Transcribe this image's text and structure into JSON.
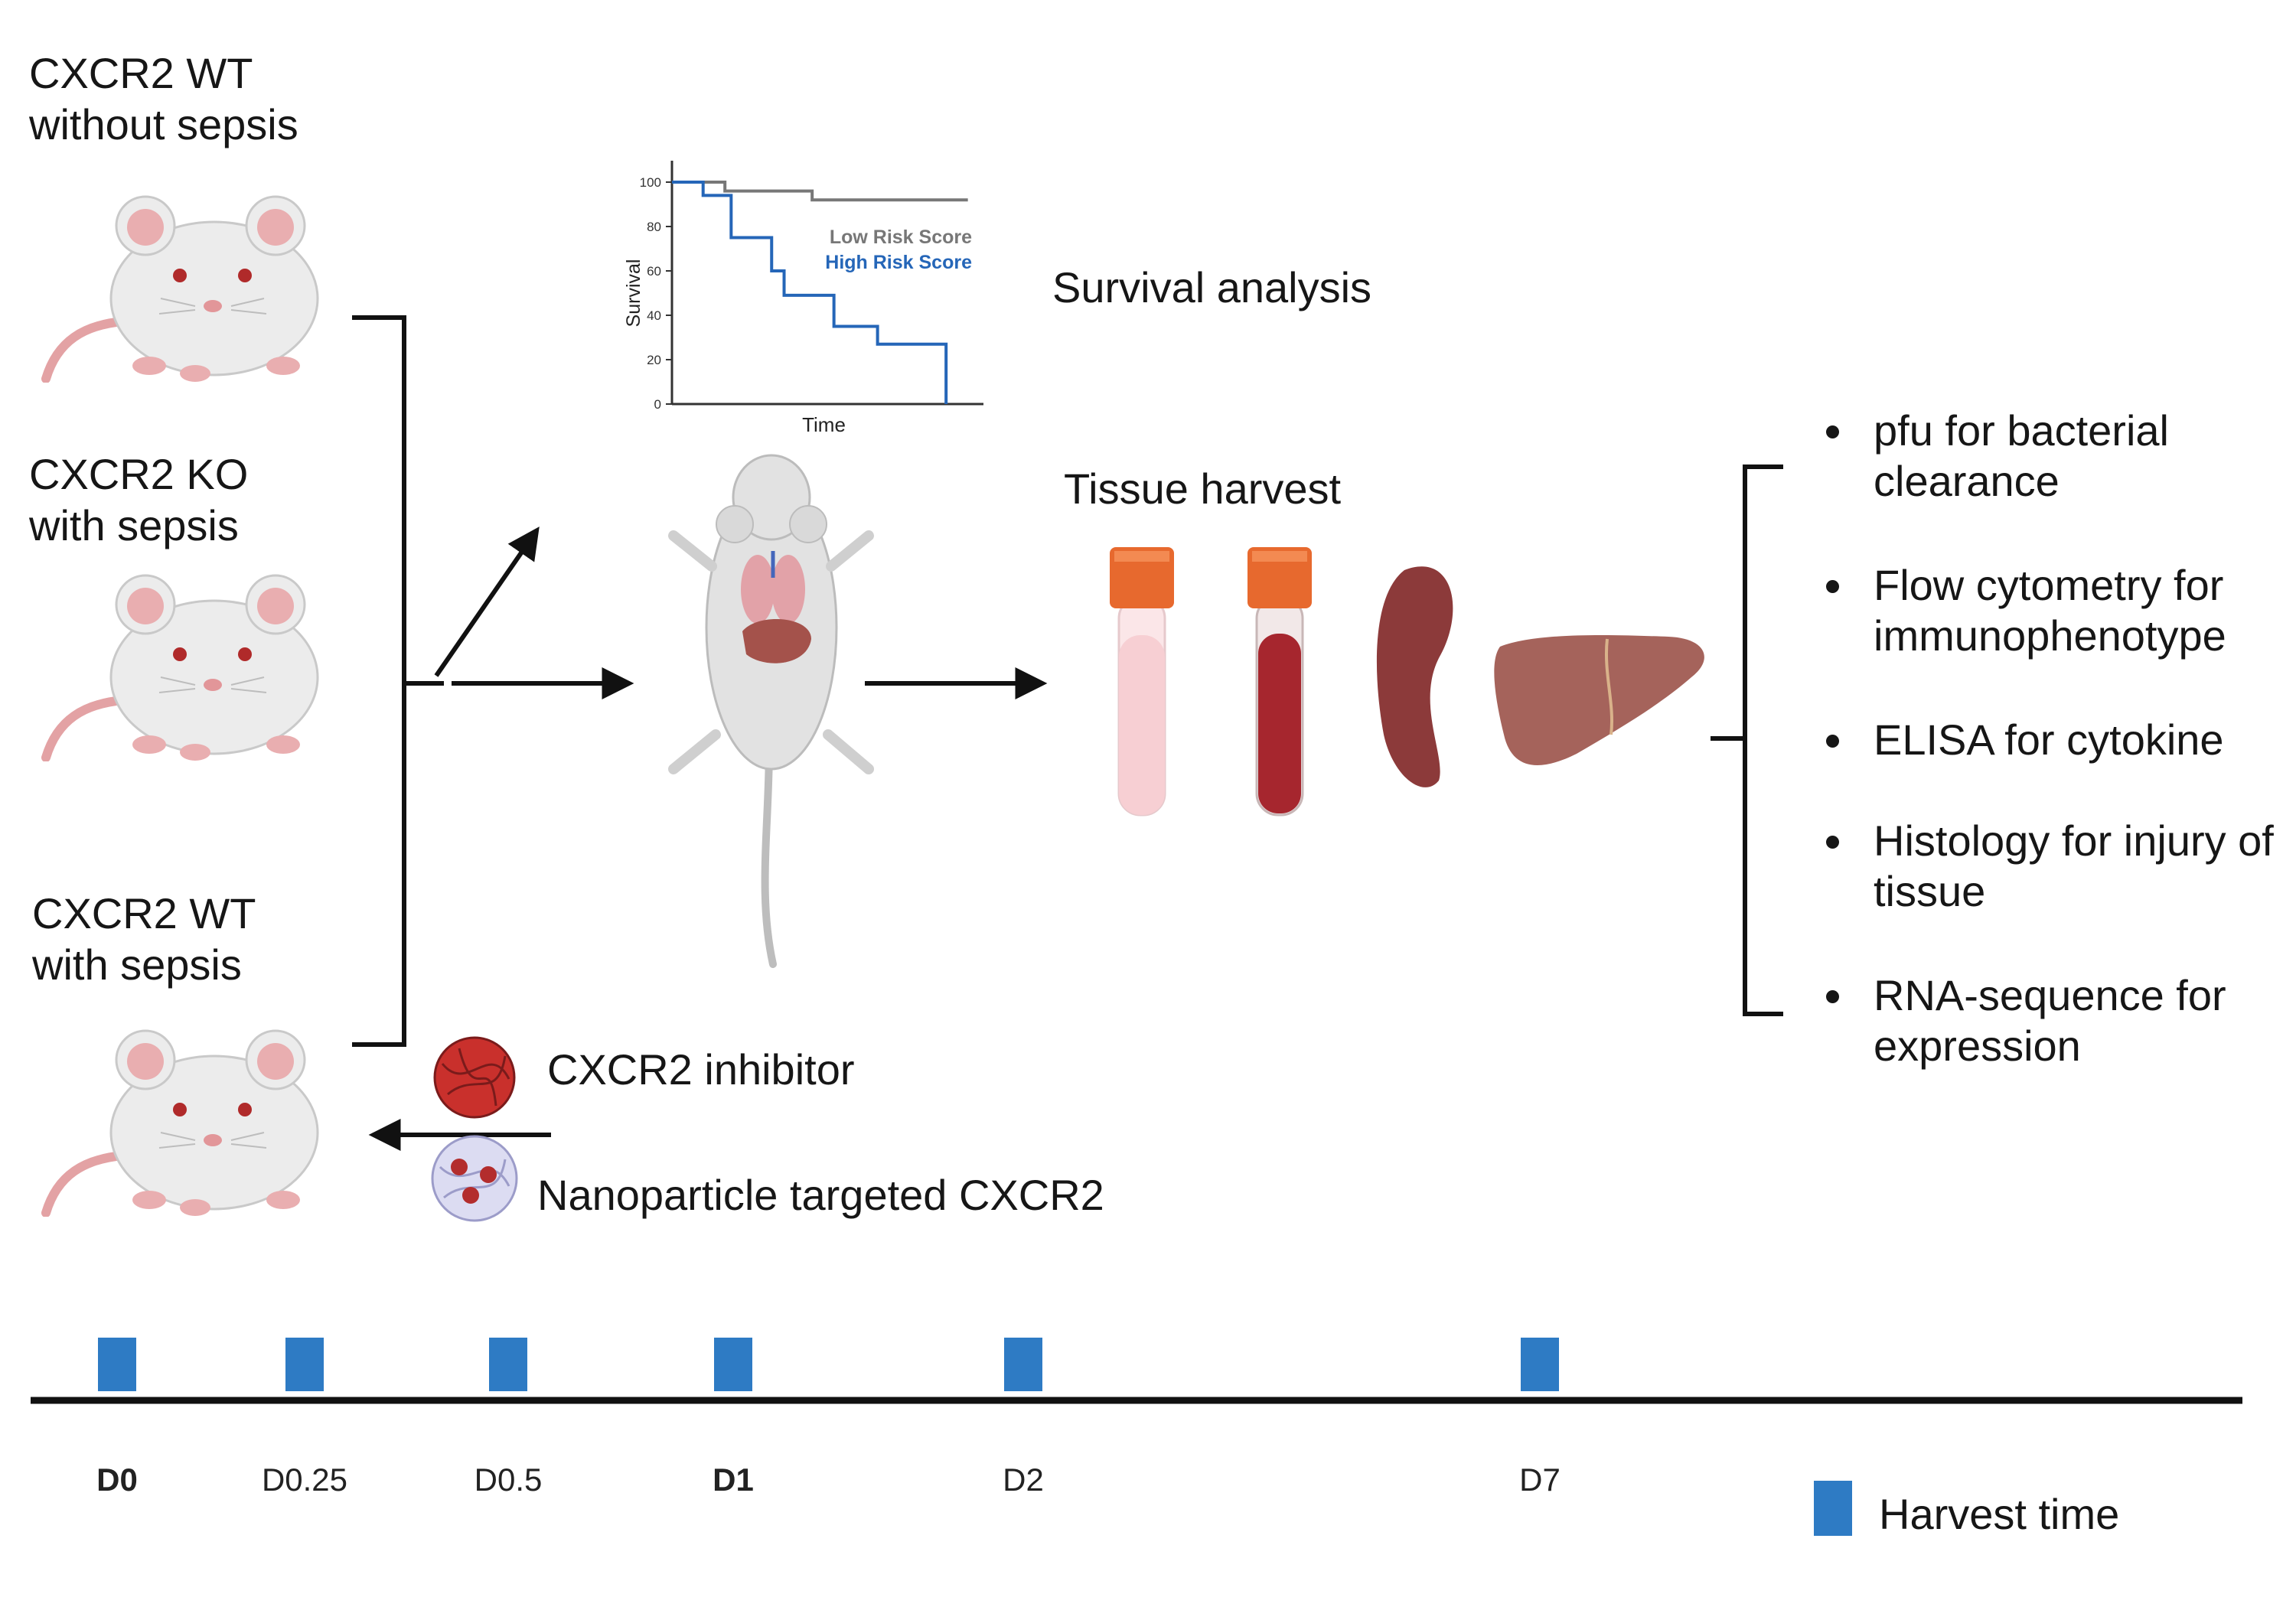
{
  "groups": [
    {
      "line1": "CXCR2 WT",
      "line2": "without sepsis"
    },
    {
      "line1": "CXCR2 KO",
      "line2": "with sepsis"
    },
    {
      "line1": "CXCR2 WT",
      "line2": "with sepsis"
    }
  ],
  "treatments": {
    "inhibitor": "CXCR2 inhibitor",
    "nanoparticle": "Nanoparticle targeted CXCR2"
  },
  "survival": {
    "label": "Survival analysis"
  },
  "harvest": {
    "label": "Tissue harvest"
  },
  "assays": [
    "pfu for bacterial clearance",
    "Flow cytometry for immunophenotype",
    "ELISA for cytokine",
    "Histology for injury of tissue",
    "RNA-sequence for expression"
  ],
  "timeline": {
    "days": [
      {
        "label": "D0",
        "bold": true
      },
      {
        "label": "D0.25",
        "bold": false
      },
      {
        "label": "D0.5",
        "bold": false
      },
      {
        "label": "D1",
        "bold": true
      },
      {
        "label": "D2",
        "bold": false
      },
      {
        "label": "D7",
        "bold": false
      }
    ],
    "legend_label": "Harvest time",
    "marker_color": "#2e7bc4"
  },
  "chart_data": {
    "type": "line",
    "xlabel": "Time",
    "ylabel": "Survival",
    "ylim": [
      0,
      100
    ],
    "yticks": [
      "0",
      "20",
      "40",
      "60",
      "80",
      "100"
    ],
    "series": [
      {
        "name": "Low Risk Score",
        "color": "#777777",
        "x": [
          0,
          17,
          17,
          45,
          45,
          95
        ],
        "y": [
          100,
          100,
          96,
          96,
          92,
          92
        ]
      },
      {
        "name": "High Risk Score",
        "color": "#2566b8",
        "x": [
          0,
          10,
          10,
          19,
          19,
          32,
          32,
          36,
          36,
          52,
          52,
          66,
          66,
          88,
          88
        ],
        "y": [
          100,
          100,
          94,
          94,
          75,
          75,
          60,
          60,
          49,
          49,
          35,
          35,
          27,
          27,
          0
        ]
      }
    ]
  },
  "icons": {
    "mouse": "mouse-icon",
    "mouse_dissected": "dissected-mouse-icon",
    "serum_tube": "serum-tube-icon",
    "blood_tube": "blood-tube-icon",
    "spleen": "spleen-icon",
    "liver": "liver-icon",
    "inhibitor": "inhibitor-particle-icon",
    "nanoparticle": "nanoparticle-icon"
  }
}
